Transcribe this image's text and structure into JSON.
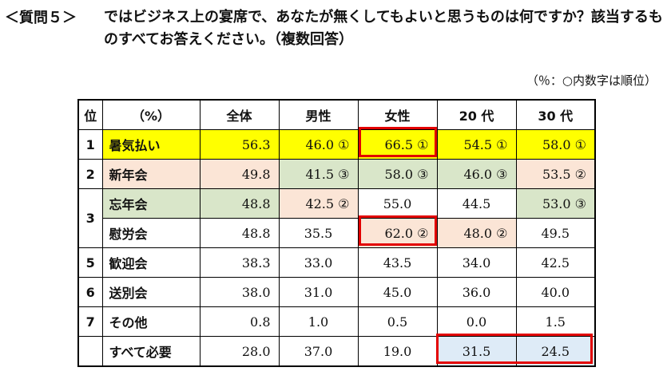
{
  "question_label": "＜質問５＞",
  "question_text": "ではビジネス上の宴席で、あなたが無くしてもよいと思うものは何ですか？該当するものすべてお答えください。（複数回答）",
  "note": "（％：○内数字は順位）",
  "table": {
    "headers": [
      "位",
      "（%）",
      "全体",
      "男性",
      "女性",
      "20 代",
      "30 代"
    ],
    "rows": [
      {
        "rank": "1",
        "item": "暑気払い",
        "values": [
          "56.3",
          "46.0 ①",
          "66.5 ①",
          "54.5 ①",
          "58.0 ①"
        ]
      },
      {
        "rank": "2",
        "item": "新年会",
        "values": [
          "49.8",
          "41.5 ③",
          "58.0 ③",
          "46.0 ③",
          "53.5 ②"
        ]
      },
      {
        "rank": "3",
        "item": "忘年会",
        "values": [
          "48.8",
          "42.5 ②",
          "55.0",
          "44.5",
          "53.0 ③"
        ]
      },
      {
        "rank": "",
        "item": "慰労会",
        "values": [
          "48.8",
          "35.5",
          "62.0 ②",
          "48.0 ②",
          "49.5"
        ]
      },
      {
        "rank": "5",
        "item": "歓迎会",
        "values": [
          "38.3",
          "33.0",
          "43.5",
          "34.0",
          "42.5"
        ]
      },
      {
        "rank": "6",
        "item": "送別会",
        "values": [
          "38.0",
          "31.0",
          "45.0",
          "36.0",
          "40.0"
        ]
      },
      {
        "rank": "7",
        "item": "その他",
        "values": [
          "0.8",
          "1.0",
          "0.5",
          "0.0",
          "1.5"
        ]
      },
      {
        "rank": "",
        "item": "すべて必要",
        "values": [
          "28.0",
          "37.0",
          "19.0",
          "31.5",
          "24.5"
        ]
      }
    ]
  }
}
